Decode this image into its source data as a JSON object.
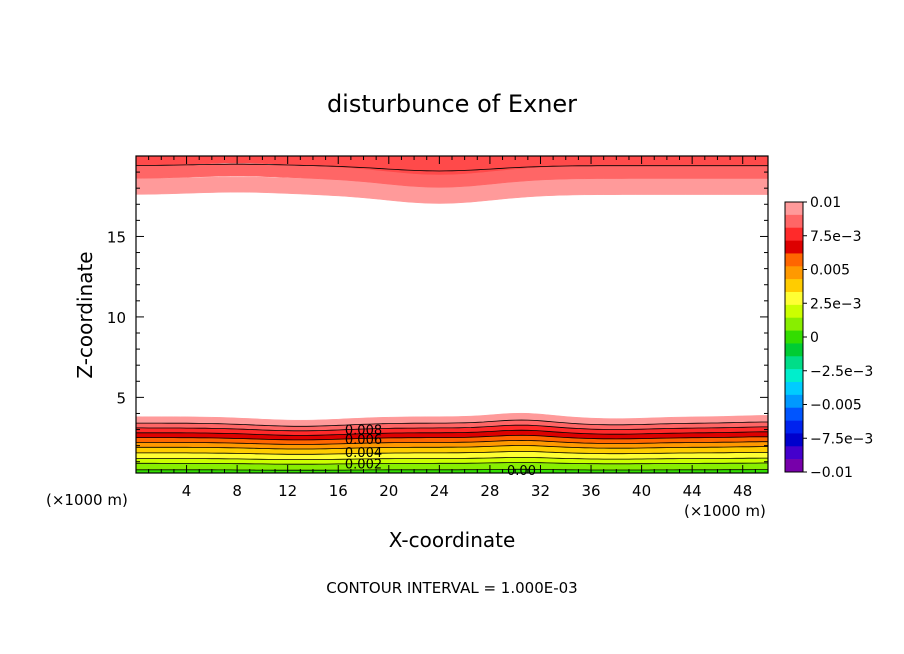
{
  "chart_data": {
    "type": "contour",
    "title": "disturbunce of Exner",
    "xlabel": "X-coordinate",
    "ylabel": "Z-coordinate",
    "x_unit_label": "(×1000 m)",
    "footer": "CONTOUR INTERVAL = 1.000E-03",
    "xlim": [
      0,
      50
    ],
    "ylim": [
      0.3,
      20
    ],
    "x_ticks": [
      4,
      8,
      12,
      16,
      20,
      24,
      28,
      32,
      36,
      40,
      44,
      48
    ],
    "y_ticks": [
      5,
      10,
      15
    ],
    "colorbar": {
      "tick_labels": [
        "0.01",
        "7.5e−3",
        "0.005",
        "2.5e−3",
        "0",
        "−2.5e−3",
        "−0.005",
        "−7.5e−3",
        "−0.01"
      ],
      "colors": [
        "#ff9a9a",
        "#ff6666",
        "#ff2a2a",
        "#dd0000",
        "#ff6600",
        "#ff9900",
        "#ffcc00",
        "#ffff33",
        "#ccff00",
        "#88ee00",
        "#33dd00",
        "#00cc33",
        "#00dd88",
        "#00eecc",
        "#00ccff",
        "#0099ff",
        "#0055ff",
        "#0022ee",
        "#0000cc",
        "#4400cc",
        "#7700aa"
      ]
    },
    "contour_labels": [
      {
        "text": "0.008",
        "x": 18,
        "z": 3.0
      },
      {
        "text": "0.006",
        "x": 18,
        "z": 2.4
      },
      {
        "text": "0.004",
        "x": 18,
        "z": 1.6
      },
      {
        "text": "0.002",
        "x": 18,
        "z": 0.9
      },
      {
        "text": "0.00",
        "x": 30.5,
        "z": 0.5
      }
    ]
  }
}
